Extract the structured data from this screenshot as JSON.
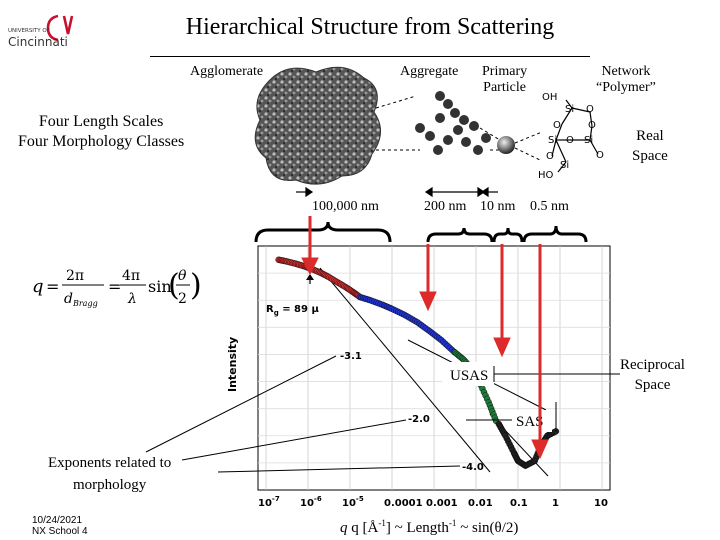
{
  "slide": {
    "title": "Hierarchical Structure from Scattering",
    "logo_text_small": "UNIVERSITY OF",
    "logo_text_big": "Cincinnati",
    "footer_date": "10/24/2021",
    "footer_event": "NX School 4"
  },
  "labels": {
    "agglomerate": "Agglomerate",
    "aggregate": "Aggregate",
    "primary_particle_1": "Primary",
    "primary_particle_2": "Particle",
    "network_1": "Network",
    "network_2": "“Polymer”",
    "scales_1": "Four Length Scales",
    "scales_2": "Four Morphology Classes",
    "real_space_1": "Real",
    "real_space_2": "Space",
    "reciprocal_1": "Reciprocal",
    "reciprocal_2": "Space",
    "exponents_1": "Exponents related to",
    "exponents_2": "morphology",
    "size_100000": "100,000 nm",
    "size_200": "200 nm",
    "size_10": "10 nm",
    "size_05": "0.5 nm",
    "usas": "USAS",
    "sas": "SAS",
    "rg": "R",
    "rg_sub": "g",
    "rg_value": " = 89  μ",
    "slope_1": "-3.1",
    "slope_2": "-2.0",
    "slope_3": "-4.0",
    "yaxis": "Intensity",
    "xaxis": "q [Å",
    "xaxis_sup": "-1",
    "xaxis_mid": "] ~ Length",
    "xaxis_end": " ~ sin(θ/2)"
  },
  "network_atoms": [
    "OH",
    "Si",
    "O",
    "O",
    "Si",
    "O",
    "O",
    "Si",
    "O",
    "Si",
    "O",
    "HO"
  ],
  "equation": {
    "lhs": "q",
    "eq": "=",
    "num1": "2π",
    "den1": "d",
    "den1_sub": "Bragg",
    "num2": "4π",
    "den2": "λ",
    "sin": "sin",
    "num3": "θ",
    "den3": "2"
  },
  "chart_data": {
    "type": "scatter",
    "x_scale": "log",
    "y_scale": "log",
    "xticks": [
      "10",
      "10",
      "10",
      "0.0001",
      "0.001",
      "0.01",
      "0.1",
      "1",
      "10"
    ],
    "xtick_exponents": [
      "-7",
      "-6",
      "-5"
    ],
    "xtick_values": [
      1e-07,
      1e-06,
      1e-05,
      0.0001,
      0.001,
      0.01,
      0.1,
      1,
      10
    ],
    "xlim": [
      1e-07,
      10
    ],
    "series": [
      {
        "color": "#d43030",
        "points": [
          [
            2e-07,
            1.0
          ],
          [
            3e-07,
            0.96
          ],
          [
            5e-07,
            0.9
          ],
          [
            8e-07,
            0.84
          ],
          [
            1.2e-06,
            0.78
          ],
          [
            2e-06,
            0.7
          ],
          [
            3e-06,
            0.63
          ],
          [
            5e-06,
            0.54
          ],
          [
            8e-06,
            0.47
          ],
          [
            1.2e-05,
            0.41
          ],
          [
            1.6e-05,
            0.37
          ]
        ]
      },
      {
        "color": "#2233cc",
        "points": [
          [
            1.7e-05,
            0.36
          ],
          [
            3e-05,
            0.33
          ],
          [
            6e-05,
            0.29
          ],
          [
            0.0001,
            0.26
          ],
          [
            0.0002,
            0.22
          ],
          [
            0.0004,
            0.18
          ],
          [
            0.0008,
            0.14
          ],
          [
            0.0015,
            0.11
          ],
          [
            0.003,
            0.08
          ]
        ]
      },
      {
        "color": "#1f7a3a",
        "points": [
          [
            0.0032,
            0.078
          ],
          [
            0.005,
            0.065
          ],
          [
            0.008,
            0.05
          ],
          [
            0.012,
            0.035
          ],
          [
            0.02,
            0.02
          ],
          [
            0.03,
            0.012
          ]
        ]
      },
      {
        "color": "#222222",
        "points": [
          [
            0.035,
            0.011
          ],
          [
            0.05,
            0.008
          ],
          [
            0.08,
            0.005
          ],
          [
            0.1,
            0.004
          ],
          [
            0.15,
            0.0035
          ],
          [
            0.25,
            0.004
          ],
          [
            0.35,
            0.006
          ],
          [
            0.5,
            0.008
          ],
          [
            0.8,
            0.009
          ]
        ]
      }
    ]
  }
}
